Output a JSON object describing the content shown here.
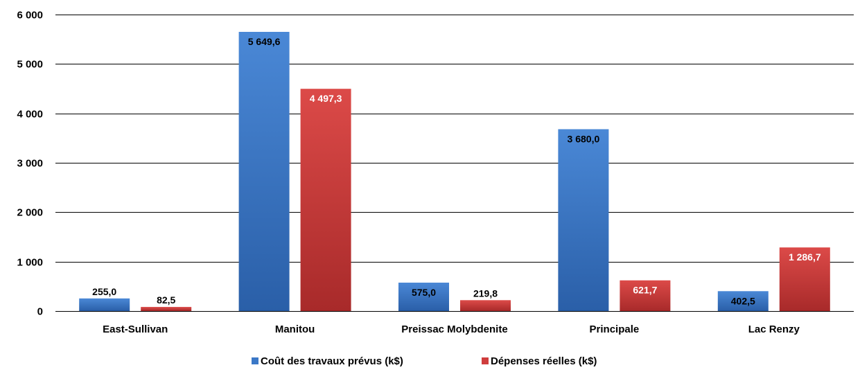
{
  "chart_data": {
    "type": "bar",
    "title": "",
    "xlabel": "",
    "ylabel": "",
    "categories": [
      "East-Sullivan",
      "Manitou",
      "Preissac Molybdenite",
      "Principale",
      "Lac Renzy"
    ],
    "series": [
      {
        "name": "Coût des travaux prévus (k$)",
        "color": "#3b78c7",
        "values": [
          255.0,
          5649.6,
          575.0,
          3680.0,
          402.5
        ],
        "labels": [
          "255,0",
          "5 649,6",
          "575,0",
          "3 680,0",
          "402,5"
        ]
      },
      {
        "name": "Dépenses réelles (k$)",
        "color": "#cf3d3d",
        "values": [
          82.5,
          4497.3,
          219.8,
          621.7,
          1286.7
        ],
        "labels": [
          "82,5",
          "4 497,3",
          "219,8",
          "621,7",
          "1 286,7"
        ]
      }
    ],
    "ylim": [
      0,
      6000
    ],
    "yticks": [
      0,
      1000,
      2000,
      3000,
      4000,
      5000,
      6000
    ],
    "ytick_labels": [
      "0",
      "1 000",
      "2 000",
      "3 000",
      "4 000",
      "5 000",
      "6 000"
    ],
    "grid": true,
    "legend_position": "bottom"
  }
}
